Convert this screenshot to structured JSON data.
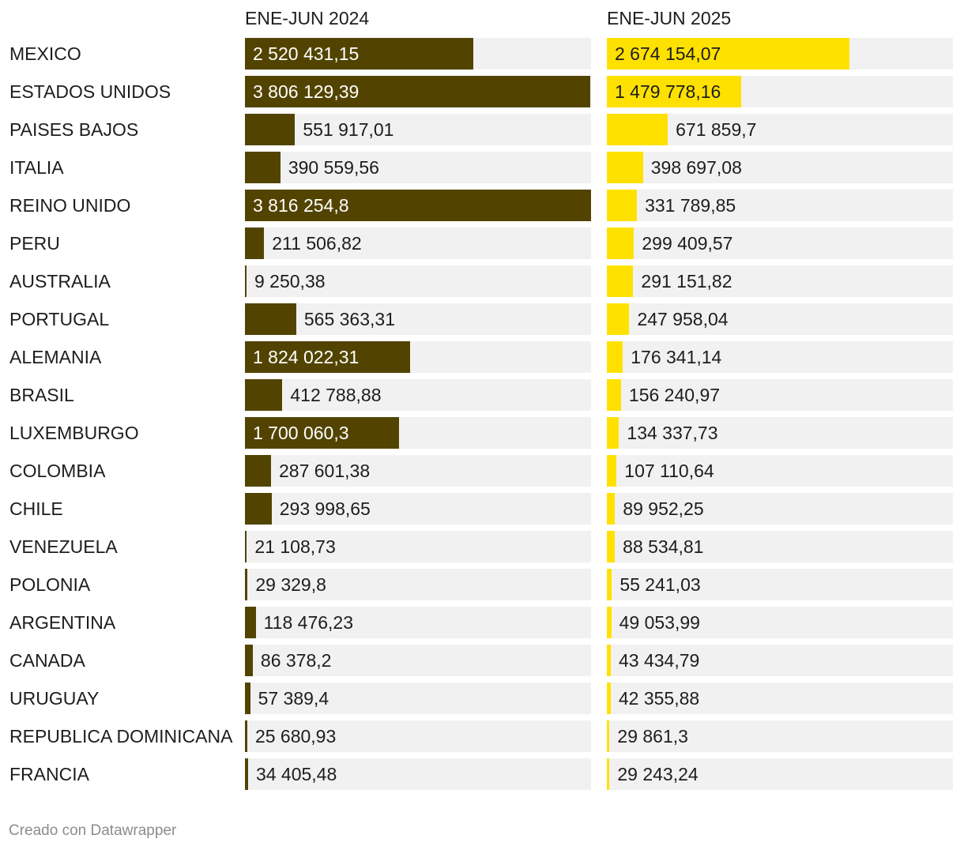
{
  "chart_data": {
    "type": "bar",
    "columns": [
      "ENE-JUN 2024",
      "ENE-JUN 2025"
    ],
    "categories": [
      "MEXICO",
      "ESTADOS UNIDOS",
      "PAISES BAJOS",
      "ITALIA",
      "REINO UNIDO",
      "PERU",
      "AUSTRALIA",
      "PORTUGAL",
      "ALEMANIA",
      "BRASIL",
      "LUXEMBURGO",
      "COLOMBIA",
      "CHILE",
      "VENEZUELA",
      "POLONIA",
      "ARGENTINA",
      "CANADA",
      "URUGUAY",
      "REPUBLICA DOMINICANA",
      "FRANCIA"
    ],
    "series": [
      {
        "name": "ENE-JUN 2024",
        "color": "#524400",
        "values": [
          2520431.15,
          3806129.39,
          551917.01,
          390559.56,
          3816254.8,
          211506.82,
          9250.38,
          565363.31,
          1824022.31,
          412788.88,
          1700060.3,
          287601.38,
          293998.65,
          21108.73,
          29329.8,
          118476.23,
          86378.2,
          57389.4,
          25680.93,
          34405.48
        ],
        "labels": [
          "2 520 431,15",
          "3 806 129,39",
          "551 917,01",
          "390 559,56",
          "3 816 254,8",
          "211 506,82",
          "9 250,38",
          "565 363,31",
          "1 824 022,31",
          "412 788,88",
          "1 700 060,3",
          "287 601,38",
          "293 998,65",
          "21 108,73",
          "29 329,8",
          "118 476,23",
          "86 378,2",
          "57 389,4",
          "25 680,93",
          "34 405,48"
        ]
      },
      {
        "name": "ENE-JUN 2025",
        "color": "#ffe100",
        "values": [
          2674154.07,
          1479778.16,
          671859.7,
          398697.08,
          331789.85,
          299409.57,
          291151.82,
          247958.04,
          176341.14,
          156240.97,
          134337.73,
          107110.64,
          89952.25,
          88534.81,
          55241.03,
          49053.99,
          43434.79,
          42355.88,
          29861.3,
          29243.24
        ],
        "labels": [
          "2 674 154,07",
          "1 479 778,16",
          "671 859,7",
          "398 697,08",
          "331 789,85",
          "299 409,57",
          "291 151,82",
          "247 958,04",
          "176 341,14",
          "156 240,97",
          "134 337,73",
          "107 110,64",
          "89 952,25",
          "88 534,81",
          "55 241,03",
          "49 053,99",
          "43 434,79",
          "42 355,88",
          "29 861,3",
          "29 243,24"
        ]
      }
    ],
    "xlim": [
      0,
      3816254.8
    ]
  },
  "footer": "Creado con Datawrapper"
}
